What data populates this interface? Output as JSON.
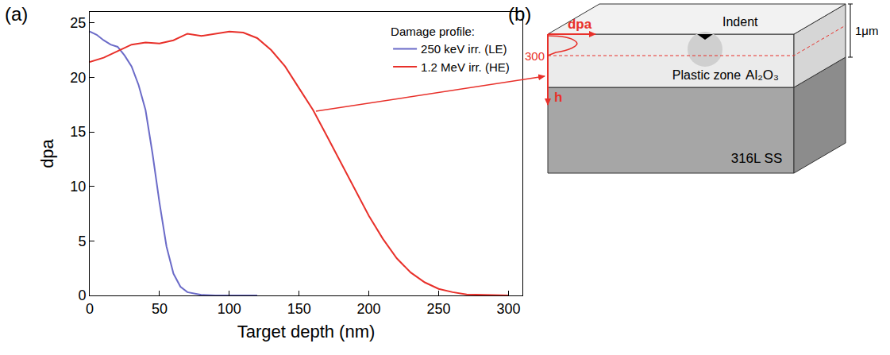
{
  "panel_labels": [
    "(a)",
    "(b)"
  ],
  "chart_data": {
    "type": "line",
    "x_label": "Target depth (nm)",
    "y_label": "dpa",
    "xlim": [
      0,
      310
    ],
    "xticks": [
      0,
      50,
      100,
      150,
      200,
      250,
      300
    ],
    "ylim": [
      0,
      26
    ],
    "yticks": [
      0,
      5,
      10,
      15,
      20,
      25
    ],
    "grid": false,
    "legend": "upper right",
    "legend_title": "Damage profile:",
    "series": [
      {
        "name": "250 keV irr. (LE)",
        "color": "#6b6bc8",
        "x": [
          0,
          5,
          10,
          15,
          20,
          25,
          30,
          35,
          40,
          45,
          50,
          55,
          60,
          65,
          70,
          80,
          90,
          100,
          110,
          120
        ],
        "values": [
          24.2,
          23.9,
          23.4,
          23.0,
          22.8,
          22.0,
          21.0,
          19.3,
          17.0,
          13.0,
          8.5,
          4.5,
          2.0,
          0.8,
          0.3,
          0.05,
          0,
          0,
          0,
          0
        ]
      },
      {
        "name": "1.2 MeV irr. (HE)",
        "color": "#e8302a",
        "x": [
          0,
          10,
          20,
          30,
          40,
          50,
          60,
          70,
          80,
          90,
          100,
          110,
          120,
          130,
          140,
          150,
          160,
          170,
          180,
          190,
          200,
          210,
          220,
          230,
          240,
          250,
          260,
          270,
          280,
          290,
          300
        ],
        "values": [
          21.4,
          21.8,
          22.4,
          23.0,
          23.2,
          23.1,
          23.4,
          24.0,
          23.8,
          24.0,
          24.2,
          24.1,
          23.6,
          22.5,
          21.0,
          19.0,
          17.0,
          14.6,
          12.2,
          9.7,
          7.3,
          5.2,
          3.4,
          2.1,
          1.2,
          0.6,
          0.3,
          0.1,
          0.05,
          0,
          0
        ]
      }
    ]
  },
  "diagram": {
    "surface_arrow_label": "dpa",
    "depth_arrow_label": "h",
    "depth_mark": 300,
    "indent_label": "Indent",
    "plastic_zone_label": "Plastic zone",
    "coating_label": "Al₂O₃",
    "substrate_label": "316L SS",
    "thickness_label": "1μm"
  }
}
